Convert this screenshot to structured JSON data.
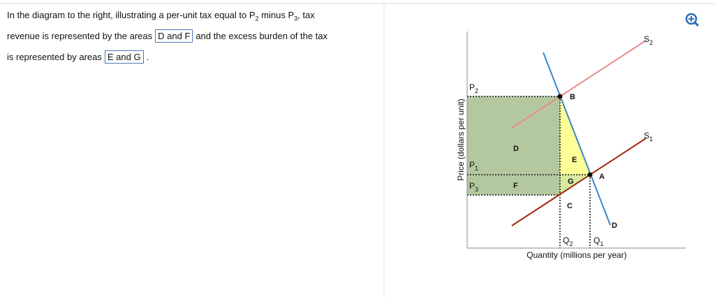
{
  "question": {
    "segments": [
      "In the diagram to the right, illustrating a per-unit tax equal to P",
      "2",
      " minus P",
      "3",
      ", tax",
      "revenue is represented by the areas",
      "and the excess burden of the tax",
      "is represented by areas",
      "."
    ],
    "answers": [
      "D and F",
      "E and G"
    ]
  },
  "diagram": {
    "y_axis_label": "Price (dollars per unit)",
    "x_axis_label": "Quantity (millions per year)",
    "prices": [
      {
        "text": "P",
        "sub": "2"
      },
      {
        "text": "P",
        "sub": "1"
      },
      {
        "text": "P",
        "sub": "3"
      }
    ],
    "quantities": [
      {
        "text": "Q",
        "sub": "2"
      },
      {
        "text": "Q",
        "sub": "1"
      }
    ],
    "supplies": [
      {
        "text": "S",
        "sub": "2"
      },
      {
        "text": "S",
        "sub": "1"
      }
    ],
    "points": [
      "B",
      "A",
      "C"
    ],
    "demand": "D",
    "areas": [
      "D",
      "E",
      "F",
      "G"
    ]
  }
}
